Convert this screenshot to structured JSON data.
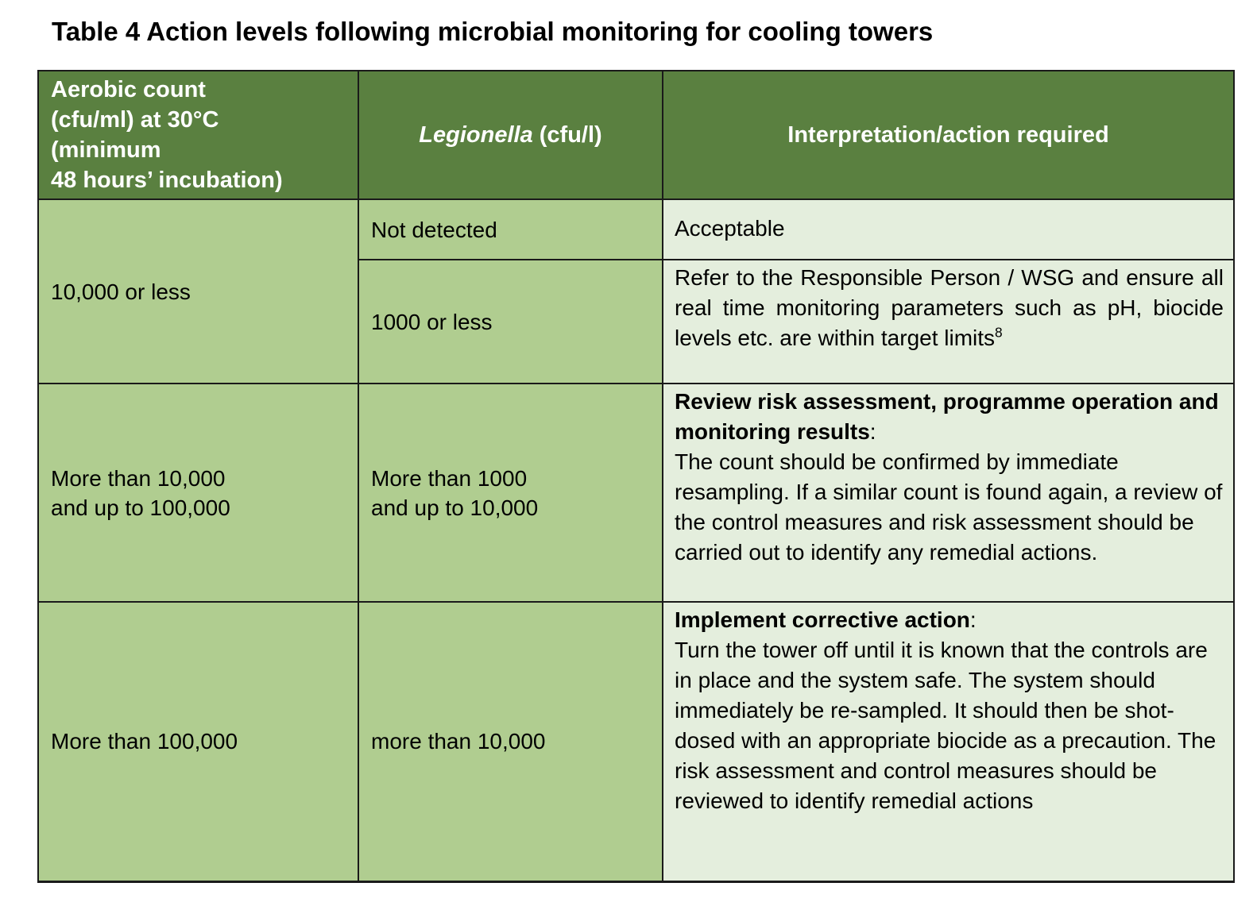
{
  "title": "Table 4 Action levels following microbial monitoring for cooling towers",
  "colors": {
    "header_bg": "#5A8040",
    "cell_bg": "#B0CD90",
    "interp_bg": "#E4EEDD",
    "border": "#1A1A1A",
    "header_text": "#FFFFFF",
    "text": "#000000"
  },
  "table": {
    "headers": {
      "aerobic": "Aerobic count\n(cfu/ml) at 30°C\n(minimum\n48 hours’ incubation)",
      "legionella_italic": "Legionella",
      "legionella_unit": " (cfu/l)",
      "interpretation": "Interpretation/action required"
    },
    "rows": [
      {
        "aerobic": "10,000 or less",
        "sub_rows": [
          {
            "legionella": "Not detected",
            "interpretation": "Acceptable"
          },
          {
            "legionella": "1000 or less",
            "interpretation": "Refer to the Responsible Person / WSG and ensure all real time monitoring parameters such as pH, biocide levels etc. are within target limits",
            "footnote_ref": "8"
          }
        ]
      },
      {
        "aerobic": "More than 10,000\nand up to 100,000",
        "legionella": "More than 1000\nand up to 10,000",
        "interpretation_lead": "Review risk assessment, programme operation and monitoring results",
        "interpretation_lead_suffix": ":",
        "interpretation_body": "The count should be confirmed by immediate resampling. If a similar count is found again, a review of the control measures and risk assessment should be carried out to identify any remedial actions."
      },
      {
        "aerobic": "More than 100,000",
        "legionella": "more than 10,000",
        "interpretation_lead": "Implement corrective action",
        "interpretation_lead_suffix": ":",
        "interpretation_body": "Turn the tower off until it is known that the controls are in place and the system safe. The system should immediately be re-sampled. It should then be shot-dosed with an appropriate biocide as a precaution. The risk assessment and control measures should be reviewed to identify remedial actions"
      }
    ]
  }
}
